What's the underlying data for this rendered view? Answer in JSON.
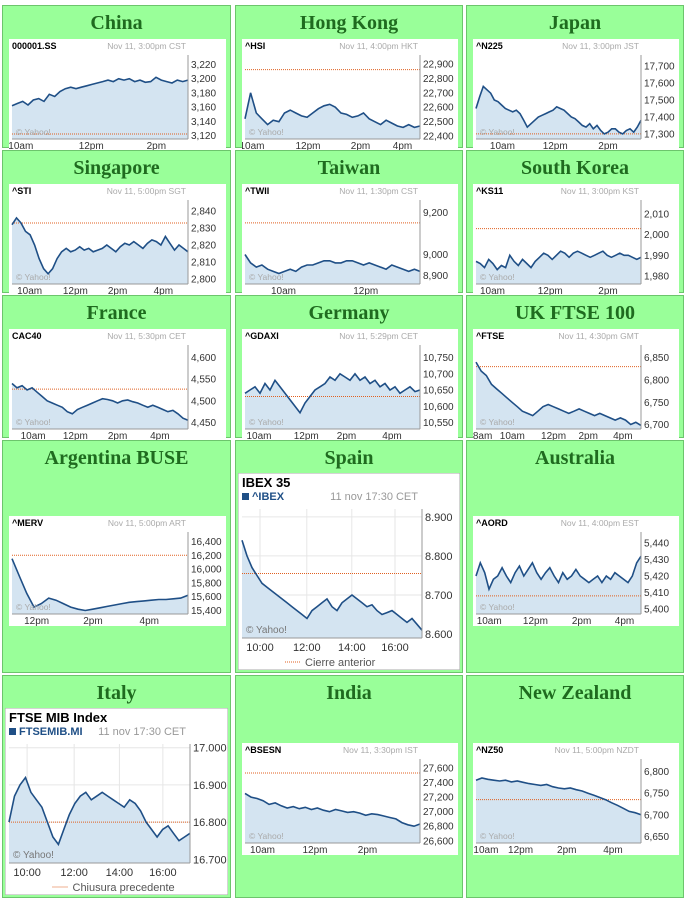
{
  "colors": {
    "panel_bg": "#99ff99",
    "title": "#1f6b1f",
    "line": "#1f4f86",
    "fill": "#d4e4f1",
    "ref": "#e06020"
  },
  "panels": [
    {
      "title": "China",
      "chart_data": {
        "type": "area",
        "ticker": "000001.SS",
        "stamp": "Nov 11, 3:00pm CST",
        "watermark": "© Yahoo!",
        "xticks": [
          "10am",
          "12pm",
          "2pm"
        ],
        "xtick_frac": [
          0.05,
          0.45,
          0.82
        ],
        "yticks": [
          "3,220",
          "3,200",
          "3,180",
          "3,160",
          "3,140",
          "3,120"
        ],
        "ylim": [
          3115,
          3225
        ],
        "prev_close": 3122,
        "values": [
          3162,
          3165,
          3168,
          3163,
          3170,
          3172,
          3168,
          3178,
          3175,
          3182,
          3186,
          3188,
          3186,
          3188,
          3190,
          3192,
          3194,
          3196,
          3198,
          3196,
          3200,
          3198,
          3200,
          3196,
          3198,
          3195,
          3196,
          3202,
          3198,
          3196,
          3194,
          3198,
          3196,
          3198
        ]
      }
    },
    {
      "title": "Hong Kong",
      "chart_data": {
        "type": "area",
        "ticker": "^HSI",
        "stamp": "Nov 11, 4:00pm HKT",
        "watermark": "© Yahoo!",
        "xticks": [
          "10am",
          "12pm",
          "2pm",
          "4pm"
        ],
        "xtick_frac": [
          0.04,
          0.36,
          0.66,
          0.9
        ],
        "yticks": [
          "22,900",
          "22,800",
          "22,700",
          "22,600",
          "22,500",
          "22,400"
        ],
        "ylim": [
          22380,
          22920
        ],
        "prev_close": 22860,
        "values": [
          22520,
          22700,
          22560,
          22520,
          22480,
          22510,
          22500,
          22560,
          22580,
          22560,
          22540,
          22530,
          22560,
          22590,
          22610,
          22620,
          22600,
          22560,
          22550,
          22530,
          22540,
          22560,
          22520,
          22500,
          22480,
          22510,
          22490,
          22470,
          22460,
          22480,
          22460,
          22470
        ]
      }
    },
    {
      "title": "Japan",
      "chart_data": {
        "type": "area",
        "ticker": "^N225",
        "stamp": "Nov 11, 3:00pm JST",
        "watermark": "© Yahoo!",
        "xticks": [
          "10am",
          "12pm",
          "2pm"
        ],
        "xtick_frac": [
          0.16,
          0.48,
          0.8
        ],
        "yticks": [
          "17,700",
          "17,600",
          "17,500",
          "17,400",
          "17,300"
        ],
        "ylim": [
          17270,
          17730
        ],
        "prev_close": 17300,
        "values": [
          17450,
          17520,
          17580,
          17560,
          17540,
          17500,
          17490,
          17470,
          17450,
          17440,
          17430,
          17440,
          17420,
          17380,
          17340,
          17360,
          17380,
          17400,
          17410,
          17420,
          17430,
          17440,
          17460,
          17450,
          17440,
          17420,
          17400,
          17390,
          17370,
          17350,
          17340,
          17360,
          17330,
          17350,
          17320,
          17300,
          17310,
          17330,
          17330,
          17310,
          17300,
          17320,
          17330,
          17310,
          17340,
          17380
        ]
      }
    },
    {
      "title": "Singapore",
      "chart_data": {
        "type": "area",
        "ticker": "^STI",
        "stamp": "Nov 11, 5:00pm SGT",
        "watermark": "© Yahoo!",
        "xticks": [
          "10am",
          "12pm",
          "2pm",
          "4pm"
        ],
        "xtick_frac": [
          0.1,
          0.36,
          0.6,
          0.86
        ],
        "yticks": [
          "2,840",
          "2,830",
          "2,820",
          "2,810",
          "2,800"
        ],
        "ylim": [
          2797,
          2843
        ],
        "prev_close": 2833,
        "values": [
          2832,
          2836,
          2833,
          2828,
          2826,
          2820,
          2812,
          2806,
          2803,
          2806,
          2812,
          2816,
          2818,
          2816,
          2817,
          2819,
          2817,
          2818,
          2816,
          2817,
          2818,
          2820,
          2818,
          2816,
          2819,
          2821,
          2820,
          2822,
          2820,
          2818,
          2821,
          2823,
          2822,
          2820,
          2825,
          2821,
          2817,
          2820,
          2818,
          2816
        ]
      }
    },
    {
      "title": "Taiwan",
      "chart_data": {
        "type": "area",
        "ticker": "^TWII",
        "stamp": "Nov 11, 1:30pm CST",
        "watermark": "© Yahoo!",
        "xticks": [
          "10am",
          "12pm"
        ],
        "xtick_frac": [
          0.22,
          0.69
        ],
        "yticks": [
          "9,200",
          "9,000",
          "8,900"
        ],
        "ylim": [
          8860,
          9230
        ],
        "prev_close": 9150,
        "values": [
          9000,
          8960,
          8940,
          8950,
          8930,
          8920,
          8910,
          8920,
          8930,
          8920,
          8940,
          8950,
          8950,
          8960,
          8970,
          8970,
          8960,
          8960,
          8970,
          8970,
          8960,
          8950,
          8960,
          8950,
          8940,
          8930,
          8950,
          8940,
          8930,
          8920,
          8930,
          8920
        ]
      }
    },
    {
      "title": "South Korea",
      "chart_data": {
        "type": "area",
        "ticker": "^KS11",
        "stamp": "Nov 11, 3:00pm KST",
        "watermark": "© Yahoo!",
        "xticks": [
          "10am",
          "12pm",
          "2pm"
        ],
        "xtick_frac": [
          0.1,
          0.45,
          0.8
        ],
        "yticks": [
          "2,010",
          "2,000",
          "1,990",
          "1,980"
        ],
        "ylim": [
          1976,
          2014
        ],
        "prev_close": 2003,
        "values": [
          1987,
          1986,
          1984,
          1988,
          1986,
          1983,
          1985,
          1984,
          1990,
          1987,
          1985,
          1988,
          1986,
          1984,
          1987,
          1989,
          1991,
          1990,
          1988,
          1990,
          1992,
          1991,
          1989,
          1991,
          1992,
          1991,
          1990,
          1989,
          1990,
          1991,
          1992,
          1990,
          1989,
          1990,
          1991,
          1990,
          1990,
          1989,
          1988,
          1989
        ]
      }
    },
    {
      "title": "France",
      "chart_data": {
        "type": "area",
        "ticker": "CAC40",
        "stamp": "Nov 11, 5:30pm CET",
        "watermark": "© Yahoo!",
        "xticks": [
          "10am",
          "12pm",
          "2pm",
          "4pm"
        ],
        "xtick_frac": [
          0.12,
          0.36,
          0.6,
          0.84
        ],
        "yticks": [
          "4,600",
          "4,550",
          "4,500",
          "4,450"
        ],
        "ylim": [
          4435,
          4615
        ],
        "prev_close": 4527,
        "values": [
          4540,
          4530,
          4535,
          4525,
          4530,
          4520,
          4510,
          4500,
          4495,
          4490,
          4485,
          4475,
          4470,
          4480,
          4485,
          4490,
          4495,
          4500,
          4505,
          4503,
          4500,
          4495,
          4500,
          4502,
          4498,
          4495,
          4490,
          4485,
          4490,
          4485,
          4480,
          4475,
          4478,
          4470,
          4460,
          4455
        ]
      }
    },
    {
      "title": "Germany",
      "chart_data": {
        "type": "area",
        "ticker": "^GDAXI",
        "stamp": "Nov 11, 5:29pm CET",
        "watermark": "© Yahoo!",
        "xticks": [
          "10am",
          "12pm",
          "2pm",
          "4pm"
        ],
        "xtick_frac": [
          0.08,
          0.35,
          0.58,
          0.84
        ],
        "yticks": [
          "10,750",
          "10,700",
          "10,650",
          "10,600",
          "10,550"
        ],
        "ylim": [
          10530,
          10770
        ],
        "prev_close": 10630,
        "values": [
          10640,
          10650,
          10660,
          10640,
          10670,
          10650,
          10680,
          10660,
          10640,
          10620,
          10600,
          10580,
          10610,
          10630,
          10650,
          10660,
          10670,
          10690,
          10680,
          10700,
          10690,
          10680,
          10700,
          10680,
          10690,
          10670,
          10680,
          10660,
          10670,
          10650,
          10660,
          10640,
          10650,
          10660,
          10645,
          10650
        ]
      }
    },
    {
      "title": "UK FTSE 100",
      "chart_data": {
        "type": "area",
        "ticker": "^FTSE",
        "stamp": "Nov 11, 4:30pm GMT",
        "watermark": "© Yahoo!",
        "xticks": [
          "8am",
          "10am",
          "12pm",
          "2pm",
          "4pm"
        ],
        "xtick_frac": [
          0.04,
          0.22,
          0.47,
          0.68,
          0.89
        ],
        "yticks": [
          "6,850",
          "6,800",
          "6,750",
          "6,700"
        ],
        "ylim": [
          6690,
          6865
        ],
        "prev_close": 6830,
        "values": [
          6840,
          6820,
          6810,
          6790,
          6780,
          6770,
          6760,
          6750,
          6740,
          6730,
          6725,
          6720,
          6730,
          6740,
          6745,
          6740,
          6735,
          6730,
          6725,
          6730,
          6735,
          6730,
          6725,
          6720,
          6725,
          6720,
          6715,
          6710,
          6715,
          6710,
          6700,
          6705,
          6698
        ]
      }
    },
    {
      "title": "Argentina BUSE",
      "chart_data": {
        "type": "area",
        "ticker": "^MERV",
        "stamp": "Nov 11, 5:00pm ART",
        "watermark": "© Yahoo!",
        "xticks": [
          "12pm",
          "2pm",
          "4pm"
        ],
        "xtick_frac": [
          0.14,
          0.46,
          0.78
        ],
        "yticks": [
          "16,400",
          "16,200",
          "16,000",
          "15,800",
          "15,600",
          "15,400"
        ],
        "ylim": [
          15350,
          16450
        ],
        "prev_close": 16200,
        "values": [
          16150,
          15900,
          15650,
          15450,
          15500,
          15580,
          15550,
          15500,
          15450,
          15420,
          15400,
          15420,
          15440,
          15460,
          15480,
          15500,
          15520,
          15530,
          15540,
          15550,
          15560,
          15560,
          15570,
          15580,
          15620
        ]
      }
    },
    {
      "title": "Spain",
      "chart_data": {
        "type": "area",
        "title": "IBEX 35",
        "ticker": "^IBEX",
        "stamp": "11 nov 17:30 CET",
        "watermark": "© Yahoo!",
        "legend": "Cierre anterior",
        "xticks": [
          "10:00",
          "12:00",
          "14:00",
          "16:00"
        ],
        "xtick_frac": [
          0.1,
          0.36,
          0.61,
          0.85
        ],
        "yticks": [
          "8.900",
          "8.800",
          "8.700",
          "8.600"
        ],
        "ylim": [
          8590,
          8920
        ],
        "prev_close": 8755,
        "values": [
          8840,
          8800,
          8770,
          8750,
          8730,
          8720,
          8710,
          8700,
          8690,
          8680,
          8670,
          8660,
          8650,
          8640,
          8660,
          8670,
          8680,
          8690,
          8670,
          8660,
          8680,
          8690,
          8700,
          8690,
          8680,
          8670,
          8675,
          8660,
          8650,
          8655,
          8660,
          8650,
          8640,
          8630,
          8640,
          8625,
          8610
        ]
      }
    },
    {
      "title": "Australia",
      "chart_data": {
        "type": "area",
        "ticker": "^AORD",
        "stamp": "Nov 11, 4:00pm EST",
        "watermark": "© Yahoo!",
        "xticks": [
          "10am",
          "12pm",
          "2pm",
          "4pm"
        ],
        "xtick_frac": [
          0.08,
          0.36,
          0.64,
          0.9
        ],
        "yticks": [
          "5,440",
          "5,430",
          "5,420",
          "5,410",
          "5,400"
        ],
        "ylim": [
          5397,
          5443
        ],
        "prev_close": 5408,
        "values": [
          5420,
          5428,
          5422,
          5412,
          5418,
          5420,
          5425,
          5420,
          5416,
          5422,
          5426,
          5420,
          5424,
          5428,
          5422,
          5418,
          5422,
          5425,
          5420,
          5416,
          5422,
          5418,
          5420,
          5424,
          5420,
          5418,
          5416,
          5418,
          5420,
          5416,
          5420,
          5418,
          5422,
          5420,
          5418,
          5416,
          5420,
          5428,
          5432
        ]
      }
    },
    {
      "title": "Italy",
      "chart_data": {
        "type": "area",
        "title": "FTSE MIB Index",
        "ticker": "FTSEMIB.MI",
        "stamp": "11 nov 17:30 CET",
        "watermark": "© Yahoo!",
        "legend": "Chiusura precedente",
        "xticks": [
          "10:00",
          "12:00",
          "14:00",
          "16:00"
        ],
        "xtick_frac": [
          0.1,
          0.36,
          0.61,
          0.85
        ],
        "yticks": [
          "17.000",
          "16.900",
          "16.800",
          "16.700"
        ],
        "ylim": [
          16690,
          17010
        ],
        "prev_close": 16800,
        "values": [
          16800,
          16870,
          16900,
          16920,
          16880,
          16860,
          16840,
          16800,
          16760,
          16740,
          16780,
          16820,
          16850,
          16870,
          16880,
          16860,
          16870,
          16880,
          16870,
          16860,
          16850,
          16840,
          16860,
          16850,
          16830,
          16800,
          16780,
          16760,
          16780,
          16790,
          16770,
          16750,
          16760,
          16770
        ]
      }
    },
    {
      "title": "India",
      "chart_data": {
        "type": "area",
        "ticker": "^BSESN",
        "stamp": "Nov 11, 3:30pm IST",
        "watermark": "© Yahoo!",
        "xticks": [
          "10am",
          "12pm",
          "2pm"
        ],
        "xtick_frac": [
          0.1,
          0.4,
          0.7
        ],
        "yticks": [
          "27,600",
          "27,400",
          "27,200",
          "27,000",
          "26,800",
          "26,600"
        ],
        "ylim": [
          26570,
          27640
        ],
        "prev_close": 27530,
        "values": [
          27250,
          27200,
          27180,
          27150,
          27100,
          27120,
          27080,
          27050,
          27070,
          27040,
          27060,
          27030,
          27050,
          27020,
          27000,
          27030,
          27010,
          26990,
          27000,
          26980,
          26950,
          26970,
          26960,
          26940,
          26920,
          26900,
          26850,
          26820,
          26800,
          26830
        ]
      }
    },
    {
      "title": "New Zealand",
      "chart_data": {
        "type": "area",
        "ticker": "^NZ50",
        "stamp": "Nov 11, 5:00pm NZDT",
        "watermark": "© Yahoo!",
        "xticks": [
          "10am",
          "12pm",
          "2pm",
          "4pm"
        ],
        "xtick_frac": [
          0.06,
          0.27,
          0.55,
          0.83
        ],
        "yticks": [
          "6,800",
          "6,750",
          "6,700",
          "6,650"
        ],
        "ylim": [
          6635,
          6815
        ],
        "prev_close": 6735,
        "values": [
          6780,
          6785,
          6782,
          6780,
          6778,
          6780,
          6776,
          6778,
          6775,
          6772,
          6770,
          6768,
          6770,
          6765,
          6762,
          6760,
          6762,
          6758,
          6755,
          6750,
          6745,
          6740,
          6735,
          6728,
          6722,
          6715,
          6708,
          6705,
          6700
        ]
      }
    }
  ]
}
